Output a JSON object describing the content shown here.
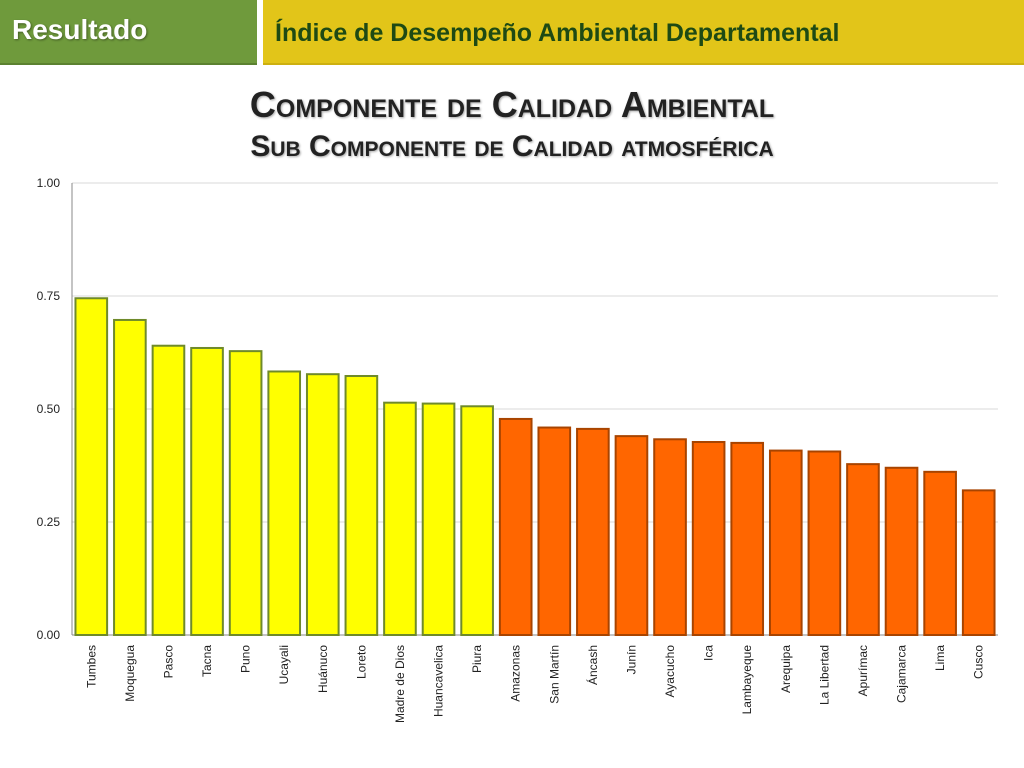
{
  "header": {
    "section_label": "Resultado",
    "title": "Índice de Desempeño Ambiental Departamental"
  },
  "chart_titles": {
    "line1": "Componente de Calidad Ambiental",
    "line2": "Sub Componente de Calidad atmosférica"
  },
  "colors": {
    "header_green": "#6f9a3c",
    "header_yellow": "#e2c519",
    "bar_yellow": "#ffff00",
    "bar_yellow_border": "#6f8a2a",
    "bar_orange": "#ff6600",
    "bar_orange_border": "#a84400"
  },
  "chart_data": {
    "type": "bar",
    "title": "Componente de Calidad Ambiental — Sub Componente de Calidad atmosférica",
    "xlabel": "",
    "ylabel": "",
    "ylim": [
      0,
      1
    ],
    "yticks": [
      "0.00",
      "0.25",
      "0.50",
      "0.75",
      "1.00"
    ],
    "grid": true,
    "categories": [
      "Tumbes",
      "Moquegua",
      "Pasco",
      "Tacna",
      "Puno",
      "Ucayali",
      "Huánuco",
      "Loreto",
      "Madre de Dios",
      "Huancavelica",
      "Piura",
      "Amazonas",
      "San Martín",
      "Áncash",
      "Junín",
      "Ayacucho",
      "Ica",
      "Lambayeque",
      "Arequipa",
      "La Libertad",
      "Apurímac",
      "Cajamarca",
      "Lima",
      "Cusco"
    ],
    "values": [
      0.745,
      0.697,
      0.64,
      0.635,
      0.628,
      0.583,
      0.577,
      0.573,
      0.514,
      0.512,
      0.506,
      0.478,
      0.459,
      0.456,
      0.44,
      0.433,
      0.427,
      0.425,
      0.408,
      0.406,
      0.378,
      0.37,
      0.361,
      0.32
    ],
    "groups": [
      "high",
      "high",
      "high",
      "high",
      "high",
      "high",
      "high",
      "high",
      "high",
      "high",
      "high",
      "low",
      "low",
      "low",
      "low",
      "low",
      "low",
      "low",
      "low",
      "low",
      "low",
      "low",
      "low",
      "low"
    ]
  }
}
